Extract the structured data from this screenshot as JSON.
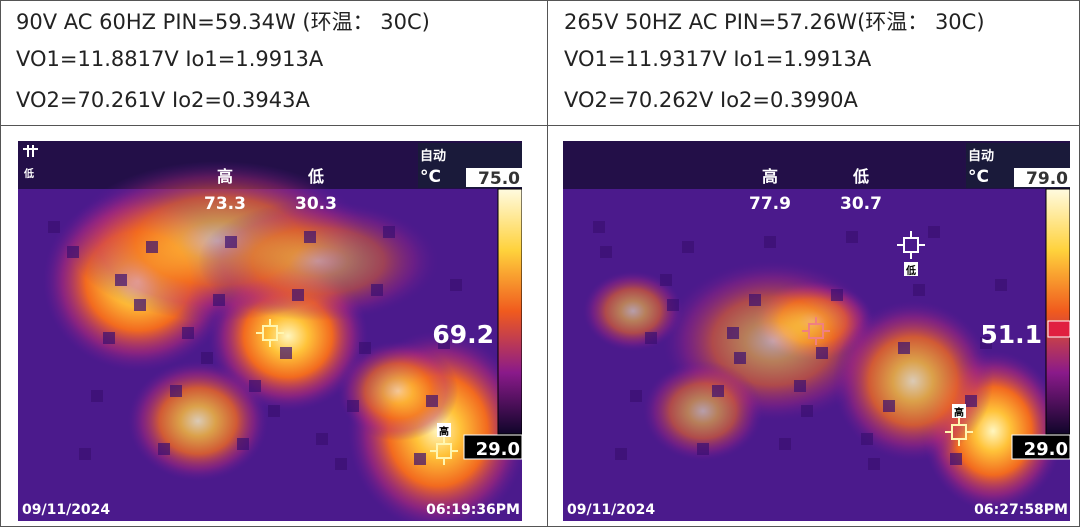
{
  "header_cells": [
    [
      "90V AC 60HZ PIN=59.34W (环温： 30C)",
      "VO1=11.8817V Io1=1.9913A",
      "VO2=70.261V Io2=0.3943A"
    ],
    [
      "265V 50HZ AC PIN=57.26W(环温： 30C)",
      "VO1=11.9317V Io1=1.9913A",
      "VO2=70.262V Io2=0.3990A"
    ]
  ],
  "thermal_images": [
    {
      "mode": "自动",
      "unit": "°C",
      "scale_max": "75.0",
      "scale_min": "29.0",
      "high_label": "高",
      "low_label": "低",
      "high_value": "73.3",
      "low_value": "30.3",
      "center_value": "69.2",
      "corner_marker": "低",
      "hot_marker": "高",
      "date": "09/11/2024",
      "time": "06:19:36PM"
    },
    {
      "mode": "自动",
      "unit": "°C",
      "scale_max": "79.0",
      "scale_min": "29.0",
      "high_label": "高",
      "low_label": "低",
      "high_value": "77.9",
      "low_value": "30.7",
      "center_value": "51.1",
      "cold_marker": "低",
      "hot_marker": "高",
      "date": "09/11/2024",
      "time": "06:27:58PM"
    }
  ]
}
